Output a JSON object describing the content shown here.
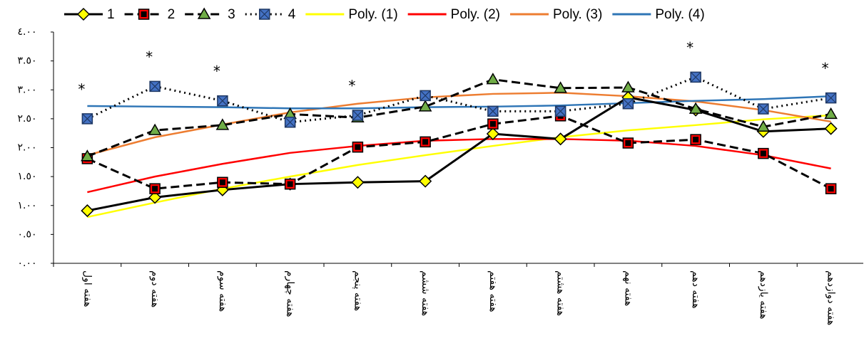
{
  "chart_data": {
    "type": "line",
    "categories": [
      "هفته اول",
      "هفته دوم",
      "هفته سوم",
      "هفته چهارم",
      "هفته پنجم",
      "هفته ششم",
      "هفته هفتم",
      "هفته هشتم",
      "هفته نهم",
      "هفته دهم",
      "هفته یازدهم",
      "هفته دوازدهم"
    ],
    "significance": [
      "*",
      "*",
      "*",
      null,
      "*",
      null,
      null,
      null,
      null,
      "*",
      null,
      "*"
    ],
    "series": [
      {
        "name": "1",
        "color": "#000000",
        "dash": "solid",
        "marker": "diamond",
        "marker_color": "#ffff00",
        "values": [
          0.91,
          1.14,
          1.27,
          1.37,
          1.4,
          1.42,
          2.24,
          2.15,
          2.87,
          2.65,
          2.28,
          2.33
        ]
      },
      {
        "name": "2",
        "color": "#000000",
        "dash": "dashed",
        "marker": "square",
        "marker_color": "#ff0000",
        "values": [
          1.81,
          1.29,
          1.4,
          1.37,
          2.01,
          2.1,
          2.41,
          2.55,
          2.08,
          2.14,
          1.9,
          1.29
        ]
      },
      {
        "name": "3",
        "color": "#000000",
        "dash": "dashed",
        "marker": "triangle",
        "marker_color": "#70ad47",
        "values": [
          1.85,
          2.3,
          2.39,
          2.58,
          2.52,
          2.71,
          3.18,
          3.03,
          3.04,
          2.67,
          2.36,
          2.58
        ]
      },
      {
        "name": "4",
        "color": "#000000",
        "dash": "dotted",
        "marker": "xsquare",
        "marker_color": "#4472c4",
        "values": [
          2.5,
          3.06,
          2.81,
          2.44,
          2.56,
          2.9,
          2.63,
          2.63,
          2.76,
          3.22,
          2.67,
          2.86
        ]
      },
      {
        "name": "Poly. (1)",
        "color": "#ffff00",
        "dash": "solid",
        "marker": "none",
        "values": [
          0.8,
          1.05,
          1.29,
          1.5,
          1.7,
          1.87,
          2.03,
          2.18,
          2.3,
          2.39,
          2.49,
          2.56
        ]
      },
      {
        "name": "Poly. (2)",
        "color": "#ff0000",
        "dash": "solid",
        "marker": "none",
        "values": [
          1.23,
          1.5,
          1.72,
          1.91,
          2.03,
          2.12,
          2.15,
          2.15,
          2.12,
          2.03,
          1.87,
          1.64
        ]
      },
      {
        "name": "Poly. (3)",
        "color": "#ed7d31",
        "dash": "solid",
        "marker": "none",
        "values": [
          1.87,
          2.18,
          2.4,
          2.61,
          2.76,
          2.87,
          2.93,
          2.95,
          2.89,
          2.8,
          2.65,
          2.45
        ]
      },
      {
        "name": "Poly. (4)",
        "color": "#2e75b6",
        "dash": "solid",
        "marker": "none",
        "values": [
          2.72,
          2.71,
          2.7,
          2.68,
          2.68,
          2.7,
          2.71,
          2.73,
          2.77,
          2.81,
          2.84,
          2.89
        ]
      }
    ],
    "ylim": [
      0,
      4
    ],
    "yticks": [
      {
        "value": 0,
        "label": "٠.٠٠"
      },
      {
        "value": 0.5,
        "label": "٠.٥٠"
      },
      {
        "value": 1,
        "label": "١.٠٠"
      },
      {
        "value": 1.5,
        "label": "١.٥٠"
      },
      {
        "value": 2,
        "label": "٢.٠٠"
      },
      {
        "value": 2.5,
        "label": "٢.٥٠"
      },
      {
        "value": 3,
        "label": "٣.٠٠"
      },
      {
        "value": 3.5,
        "label": "٣.٥٠"
      },
      {
        "value": 4,
        "label": "٤.٠٠"
      }
    ],
    "legend": "top",
    "grid": false
  }
}
